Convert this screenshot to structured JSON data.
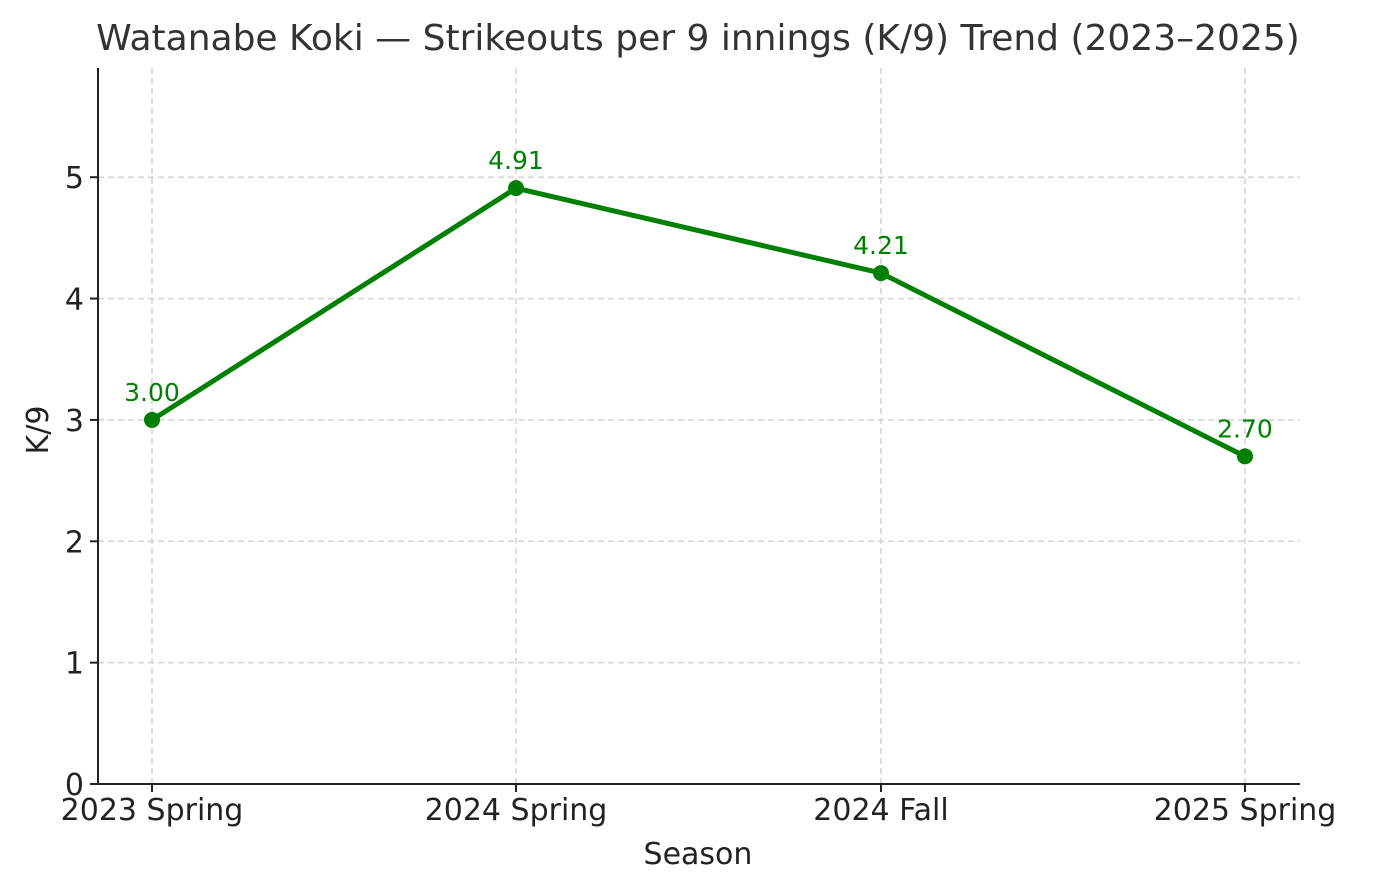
{
  "chart_data": {
    "type": "line",
    "title": "Watanabe Koki — Strikeouts per 9 innings (K/9) Trend (2023–2025)",
    "xlabel": "Season",
    "ylabel": "K/9",
    "categories": [
      "2023 Spring",
      "2024 Spring",
      "2024 Fall",
      "2025 Spring"
    ],
    "series": [
      {
        "values": [
          3.0,
          4.91,
          4.21,
          2.7
        ],
        "data_labels": [
          "3.00",
          "4.91",
          "4.21",
          "2.70"
        ],
        "color": "#008000"
      }
    ],
    "ylim": [
      0,
      5.9
    ],
    "yticks": [
      0,
      1,
      2,
      3,
      4,
      5
    ],
    "ytick_labels": [
      "0",
      "1",
      "2",
      "3",
      "4",
      "5"
    ],
    "grid": true,
    "legend": "none"
  },
  "colors": {
    "line": "#008000",
    "grid": "#d3d3d3",
    "axis": "#222222",
    "title": "#333333"
  }
}
